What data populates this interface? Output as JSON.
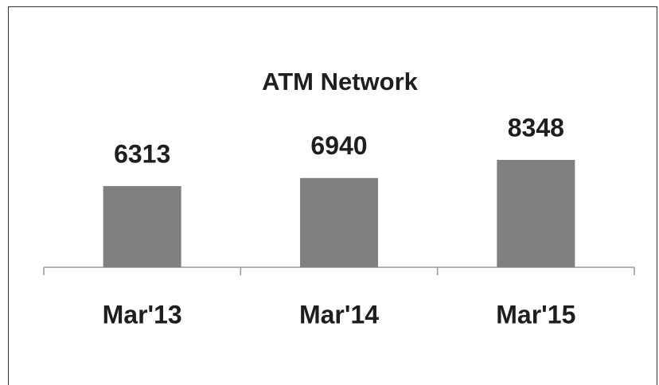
{
  "chart_data": {
    "type": "bar",
    "title": "ATM Network",
    "categories": [
      "Mar'13",
      "Mar'14",
      "Mar'15"
    ],
    "values": [
      6313,
      6940,
      8348
    ],
    "color": "#808080"
  }
}
